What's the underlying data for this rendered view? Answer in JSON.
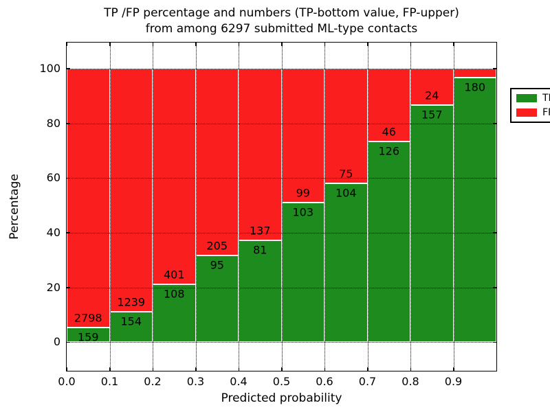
{
  "chart_data": {
    "type": "bar",
    "stacked": true,
    "normalized_to_percent": true,
    "title_line1": "TP /FP percentage and numbers (TP-bottom value, FP-upper)",
    "title_line2": "from among 6297 submitted ML-type contacts",
    "xlabel": "Predicted probability",
    "ylabel": "Percentage",
    "xlim": [
      0.0,
      1.0
    ],
    "ylim": [
      -10.5,
      109.5
    ],
    "grid": "dotted black, horizontal at yticks and vertical at bin edges",
    "bin_edges": [
      0.0,
      0.1,
      0.2,
      0.3,
      0.4,
      0.5,
      0.6,
      0.7,
      0.8,
      0.9,
      1.0
    ],
    "xtick_labels": [
      "0.0",
      "0.1",
      "0.2",
      "0.3",
      "0.4",
      "0.5",
      "0.6",
      "0.7",
      "0.8",
      "0.9"
    ],
    "ytick_values": [
      0,
      20,
      40,
      60,
      80,
      100
    ],
    "series": [
      {
        "name": "TP",
        "color": "#1e8b1e",
        "position": "bottom",
        "values": [
          159,
          154,
          108,
          95,
          81,
          103,
          104,
          126,
          157,
          180
        ],
        "labels": [
          "159",
          "154",
          "108",
          "95",
          "81",
          "103",
          "104",
          "126",
          "157",
          "180"
        ]
      },
      {
        "name": "FP",
        "color": "#fb1e1e",
        "position": "top",
        "values": [
          2798,
          1239,
          401,
          205,
          137,
          99,
          75,
          46,
          24,
          6
        ],
        "labels": [
          "2798",
          "1239",
          "401",
          "205",
          "137",
          "99",
          "75",
          "46",
          "24",
          ""
        ]
      }
    ],
    "legend": {
      "position": "upper-right",
      "entries": [
        {
          "label": "TP",
          "color": "#1e8b1e"
        },
        {
          "label": "FP",
          "color": "#fb1e1e"
        }
      ]
    }
  }
}
